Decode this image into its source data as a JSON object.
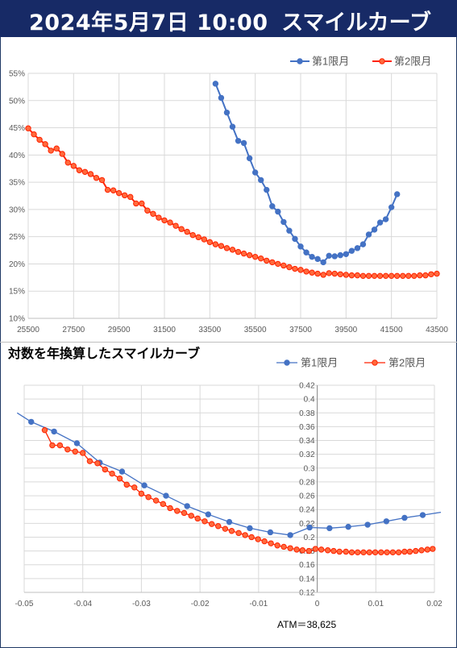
{
  "header": {
    "date": "2024年5月7日 10:00",
    "title": "スマイルカーブ"
  },
  "colors": {
    "series1": "#4472c4",
    "series2": "#ff2200",
    "series2_fill": "#ff6a3d",
    "header_bg": "#172a66"
  },
  "chart_data": [
    {
      "type": "line",
      "title": "",
      "xlim": [
        25500,
        43500
      ],
      "ylim": [
        10,
        55
      ],
      "xticks": [
        "25500",
        "27500",
        "29500",
        "31500",
        "33500",
        "35500",
        "37500",
        "39500",
        "41500",
        "43500"
      ],
      "yticks": [
        "10%",
        "15%",
        "20%",
        "25%",
        "30%",
        "35%",
        "40%",
        "45%",
        "50%",
        "55%"
      ],
      "legend": "top-right",
      "series": [
        {
          "name": "第1限月",
          "x": [
            33750,
            34000,
            34250,
            34500,
            34750,
            35000,
            35250,
            35500,
            35750,
            36000,
            36250,
            36500,
            36750,
            37000,
            37250,
            37500,
            37750,
            38000,
            38250,
            38500,
            38750,
            39000,
            39250,
            39500,
            39750,
            40000,
            40250,
            40500,
            40750,
            41000,
            41250,
            41500,
            41750
          ],
          "y": [
            53.1,
            50.5,
            47.8,
            45.2,
            42.6,
            42.2,
            39.4,
            36.8,
            35.4,
            33.6,
            30.6,
            29.6,
            27.7,
            26.1,
            24.6,
            23.2,
            22.1,
            21.3,
            20.9,
            20.3,
            21.5,
            21.4,
            21.6,
            21.8,
            22.4,
            22.9,
            23.6,
            25.4,
            26.3,
            27.6,
            28.2,
            30.4,
            32.8
          ]
        },
        {
          "name": "第2限月",
          "x": [
            25500,
            25750,
            26000,
            26250,
            26500,
            26750,
            27000,
            27250,
            27500,
            27750,
            28000,
            28250,
            28500,
            28750,
            29000,
            29250,
            29500,
            29750,
            30000,
            30250,
            30500,
            30750,
            31000,
            31250,
            31500,
            31750,
            32000,
            32250,
            32500,
            32750,
            33000,
            33250,
            33500,
            33750,
            34000,
            34250,
            34500,
            34750,
            35000,
            35250,
            35500,
            35750,
            36000,
            36250,
            36500,
            36750,
            37000,
            37250,
            37500,
            37750,
            38000,
            38250,
            38500,
            38750,
            39000,
            39250,
            39500,
            39750,
            40000,
            40250,
            40500,
            40750,
            41000,
            41250,
            41500,
            41750,
            42000,
            42250,
            42500,
            42750,
            43000,
            43250,
            43500
          ],
          "y": [
            44.9,
            43.8,
            42.8,
            42.0,
            40.8,
            41.2,
            40.2,
            38.6,
            38.0,
            37.2,
            36.9,
            36.5,
            35.8,
            35.4,
            33.6,
            33.5,
            33.0,
            32.6,
            32.3,
            31.1,
            31.1,
            29.8,
            29.2,
            28.5,
            28.0,
            27.6,
            27.0,
            26.4,
            25.9,
            25.3,
            24.9,
            24.5,
            24.0,
            23.6,
            23.3,
            22.9,
            22.6,
            22.2,
            21.9,
            21.6,
            21.3,
            21.0,
            20.6,
            20.3,
            20.0,
            19.7,
            19.4,
            19.1,
            18.9,
            18.6,
            18.4,
            18.2,
            18.0,
            18.3,
            18.2,
            18.1,
            18.0,
            17.9,
            17.9,
            17.8,
            17.8,
            17.8,
            17.8,
            17.8,
            17.8,
            17.8,
            17.8,
            17.8,
            17.8,
            17.9,
            17.9,
            18.1,
            18.2
          ]
        }
      ]
    },
    {
      "type": "line",
      "title": "対数を年換算したスマイルカーブ",
      "xlim": [
        -0.05,
        0.02
      ],
      "ylim": [
        0.12,
        0.42
      ],
      "xticks": [
        "-0.05",
        "-0.04",
        "-0.03",
        "-0.02",
        "-0.01",
        "0",
        "0.01",
        "0.02"
      ],
      "yticks": [
        "0.12",
        "0.14",
        "0.16",
        "0.18",
        "0.2",
        "0.22",
        "0.24",
        "0.26",
        "0.28",
        "0.3",
        "0.32",
        "0.34",
        "0.36",
        "0.38",
        "0.4",
        "0.42"
      ],
      "legend": "top-right",
      "annotation": "ATM＝38,625",
      "series": [
        {
          "name": "第1限月",
          "x": [
            -0.0512,
            -0.0488,
            -0.0449,
            -0.041,
            -0.0371,
            -0.0333,
            -0.0295,
            -0.0258,
            -0.0222,
            -0.0186,
            -0.015,
            -0.0115,
            -0.008,
            -0.0046,
            -0.0013,
            0.0021,
            0.0053,
            0.0086,
            0.0118,
            0.0149,
            0.018,
            0.0211
          ],
          "y": [
            0.38,
            0.367,
            0.353,
            0.336,
            0.308,
            0.295,
            0.275,
            0.26,
            0.245,
            0.233,
            0.222,
            0.213,
            0.207,
            0.203,
            0.214,
            0.213,
            0.215,
            0.218,
            0.223,
            0.228,
            0.232,
            0.236
          ]
        },
        {
          "name": "第2限月",
          "x": [
            -0.0465,
            -0.0452,
            -0.0439,
            -0.0426,
            -0.0413,
            -0.04,
            -0.0388,
            -0.0375,
            -0.0362,
            -0.035,
            -0.0337,
            -0.0325,
            -0.0312,
            -0.03,
            -0.0288,
            -0.0275,
            -0.0263,
            -0.0251,
            -0.0239,
            -0.0227,
            -0.0215,
            -0.0204,
            -0.0192,
            -0.018,
            -0.0169,
            -0.0157,
            -0.0146,
            -0.0134,
            -0.0123,
            -0.0112,
            -0.0101,
            -0.009,
            -0.0079,
            -0.0068,
            -0.0057,
            -0.0046,
            -0.0035,
            -0.0025,
            -0.0014,
            -0.0003,
            0.0007,
            0.0018,
            0.0028,
            0.0038,
            0.0049,
            0.0059,
            0.0069,
            0.0079,
            0.0089,
            0.0099,
            0.0109,
            0.0119,
            0.0129,
            0.0139,
            0.0149,
            0.0158,
            0.0168,
            0.0178,
            0.0188,
            0.0197
          ],
          "y": [
            0.355,
            0.333,
            0.333,
            0.327,
            0.324,
            0.322,
            0.31,
            0.307,
            0.298,
            0.292,
            0.285,
            0.276,
            0.272,
            0.263,
            0.258,
            0.253,
            0.248,
            0.242,
            0.238,
            0.235,
            0.231,
            0.227,
            0.223,
            0.219,
            0.216,
            0.212,
            0.209,
            0.206,
            0.203,
            0.2,
            0.197,
            0.194,
            0.191,
            0.188,
            0.186,
            0.184,
            0.182,
            0.181,
            0.18,
            0.183,
            0.182,
            0.181,
            0.18,
            0.179,
            0.179,
            0.178,
            0.178,
            0.178,
            0.178,
            0.178,
            0.178,
            0.178,
            0.178,
            0.178,
            0.179,
            0.179,
            0.18,
            0.181,
            0.182,
            0.183
          ]
        }
      ]
    }
  ]
}
